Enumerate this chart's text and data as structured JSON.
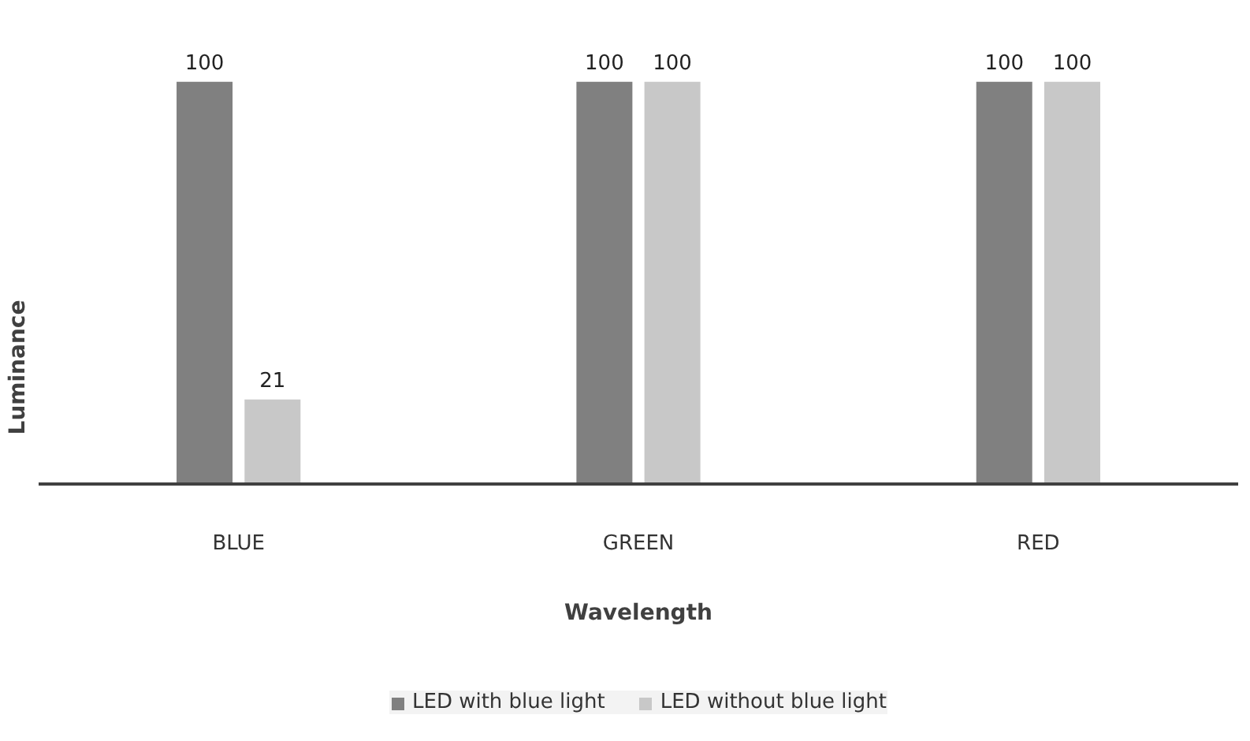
{
  "chart_data": {
    "type": "bar",
    "xlabel": "Wavelength",
    "ylabel": "Luminance",
    "categories": [
      "BLUE",
      "GREEN",
      "RED"
    ],
    "series": [
      {
        "name": "LED with blue light",
        "color": "#808080",
        "values": [
          100,
          100,
          100
        ]
      },
      {
        "name": "LED without blue light",
        "color": "#c8c8c8",
        "values": [
          21,
          100,
          100
        ]
      }
    ],
    "data_labels": true,
    "legend": "bottom"
  }
}
